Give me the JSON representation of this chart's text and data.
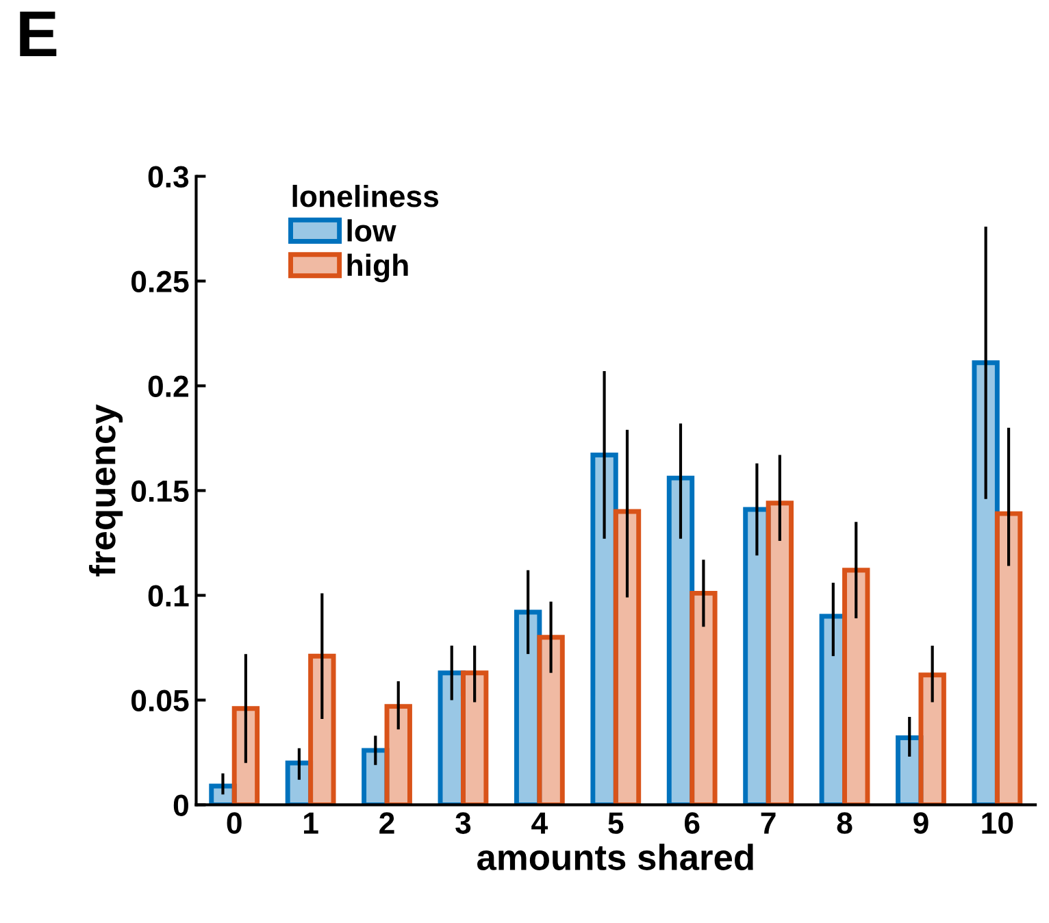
{
  "chart_data": {
    "type": "bar",
    "categories": [
      "0",
      "1",
      "2",
      "3",
      "4",
      "5",
      "6",
      "7",
      "8",
      "9",
      "10"
    ],
    "xlabel": "amounts shared",
    "ylabel": "frequency",
    "legend_title": "loneliness",
    "annotations": [
      "E"
    ],
    "series": [
      {
        "name": "low",
        "color": "#0072bd",
        "values": [
          0.009,
          0.02,
          0.026,
          0.063,
          0.092,
          0.167,
          0.156,
          0.141,
          0.09,
          0.032,
          0.211
        ],
        "errors": [
          [
            0.005,
            0.015
          ],
          [
            0.012,
            0.027
          ],
          [
            0.019,
            0.033
          ],
          [
            0.05,
            0.076
          ],
          [
            0.072,
            0.112
          ],
          [
            0.127,
            0.207
          ],
          [
            0.127,
            0.182
          ],
          [
            0.119,
            0.163
          ],
          [
            0.071,
            0.106
          ],
          [
            0.023,
            0.042
          ],
          [
            0.146,
            0.276
          ]
        ]
      },
      {
        "name": "high",
        "color": "#d95319",
        "values": [
          0.046,
          0.071,
          0.047,
          0.063,
          0.08,
          0.14,
          0.101,
          0.144,
          0.112,
          0.062,
          0.139
        ],
        "errors": [
          [
            0.02,
            0.072
          ],
          [
            0.041,
            0.101
          ],
          [
            0.036,
            0.059
          ],
          [
            0.049,
            0.076
          ],
          [
            0.063,
            0.097
          ],
          [
            0.099,
            0.179
          ],
          [
            0.085,
            0.117
          ],
          [
            0.126,
            0.167
          ],
          [
            0.089,
            0.135
          ],
          [
            0.049,
            0.076
          ],
          [
            0.114,
            0.18
          ]
        ]
      }
    ],
    "ylim": [
      0,
      0.3
    ],
    "yticks": [
      0,
      0.05,
      0.1,
      0.15,
      0.2,
      0.25,
      0.3
    ],
    "grid": false,
    "legend": "top left"
  }
}
